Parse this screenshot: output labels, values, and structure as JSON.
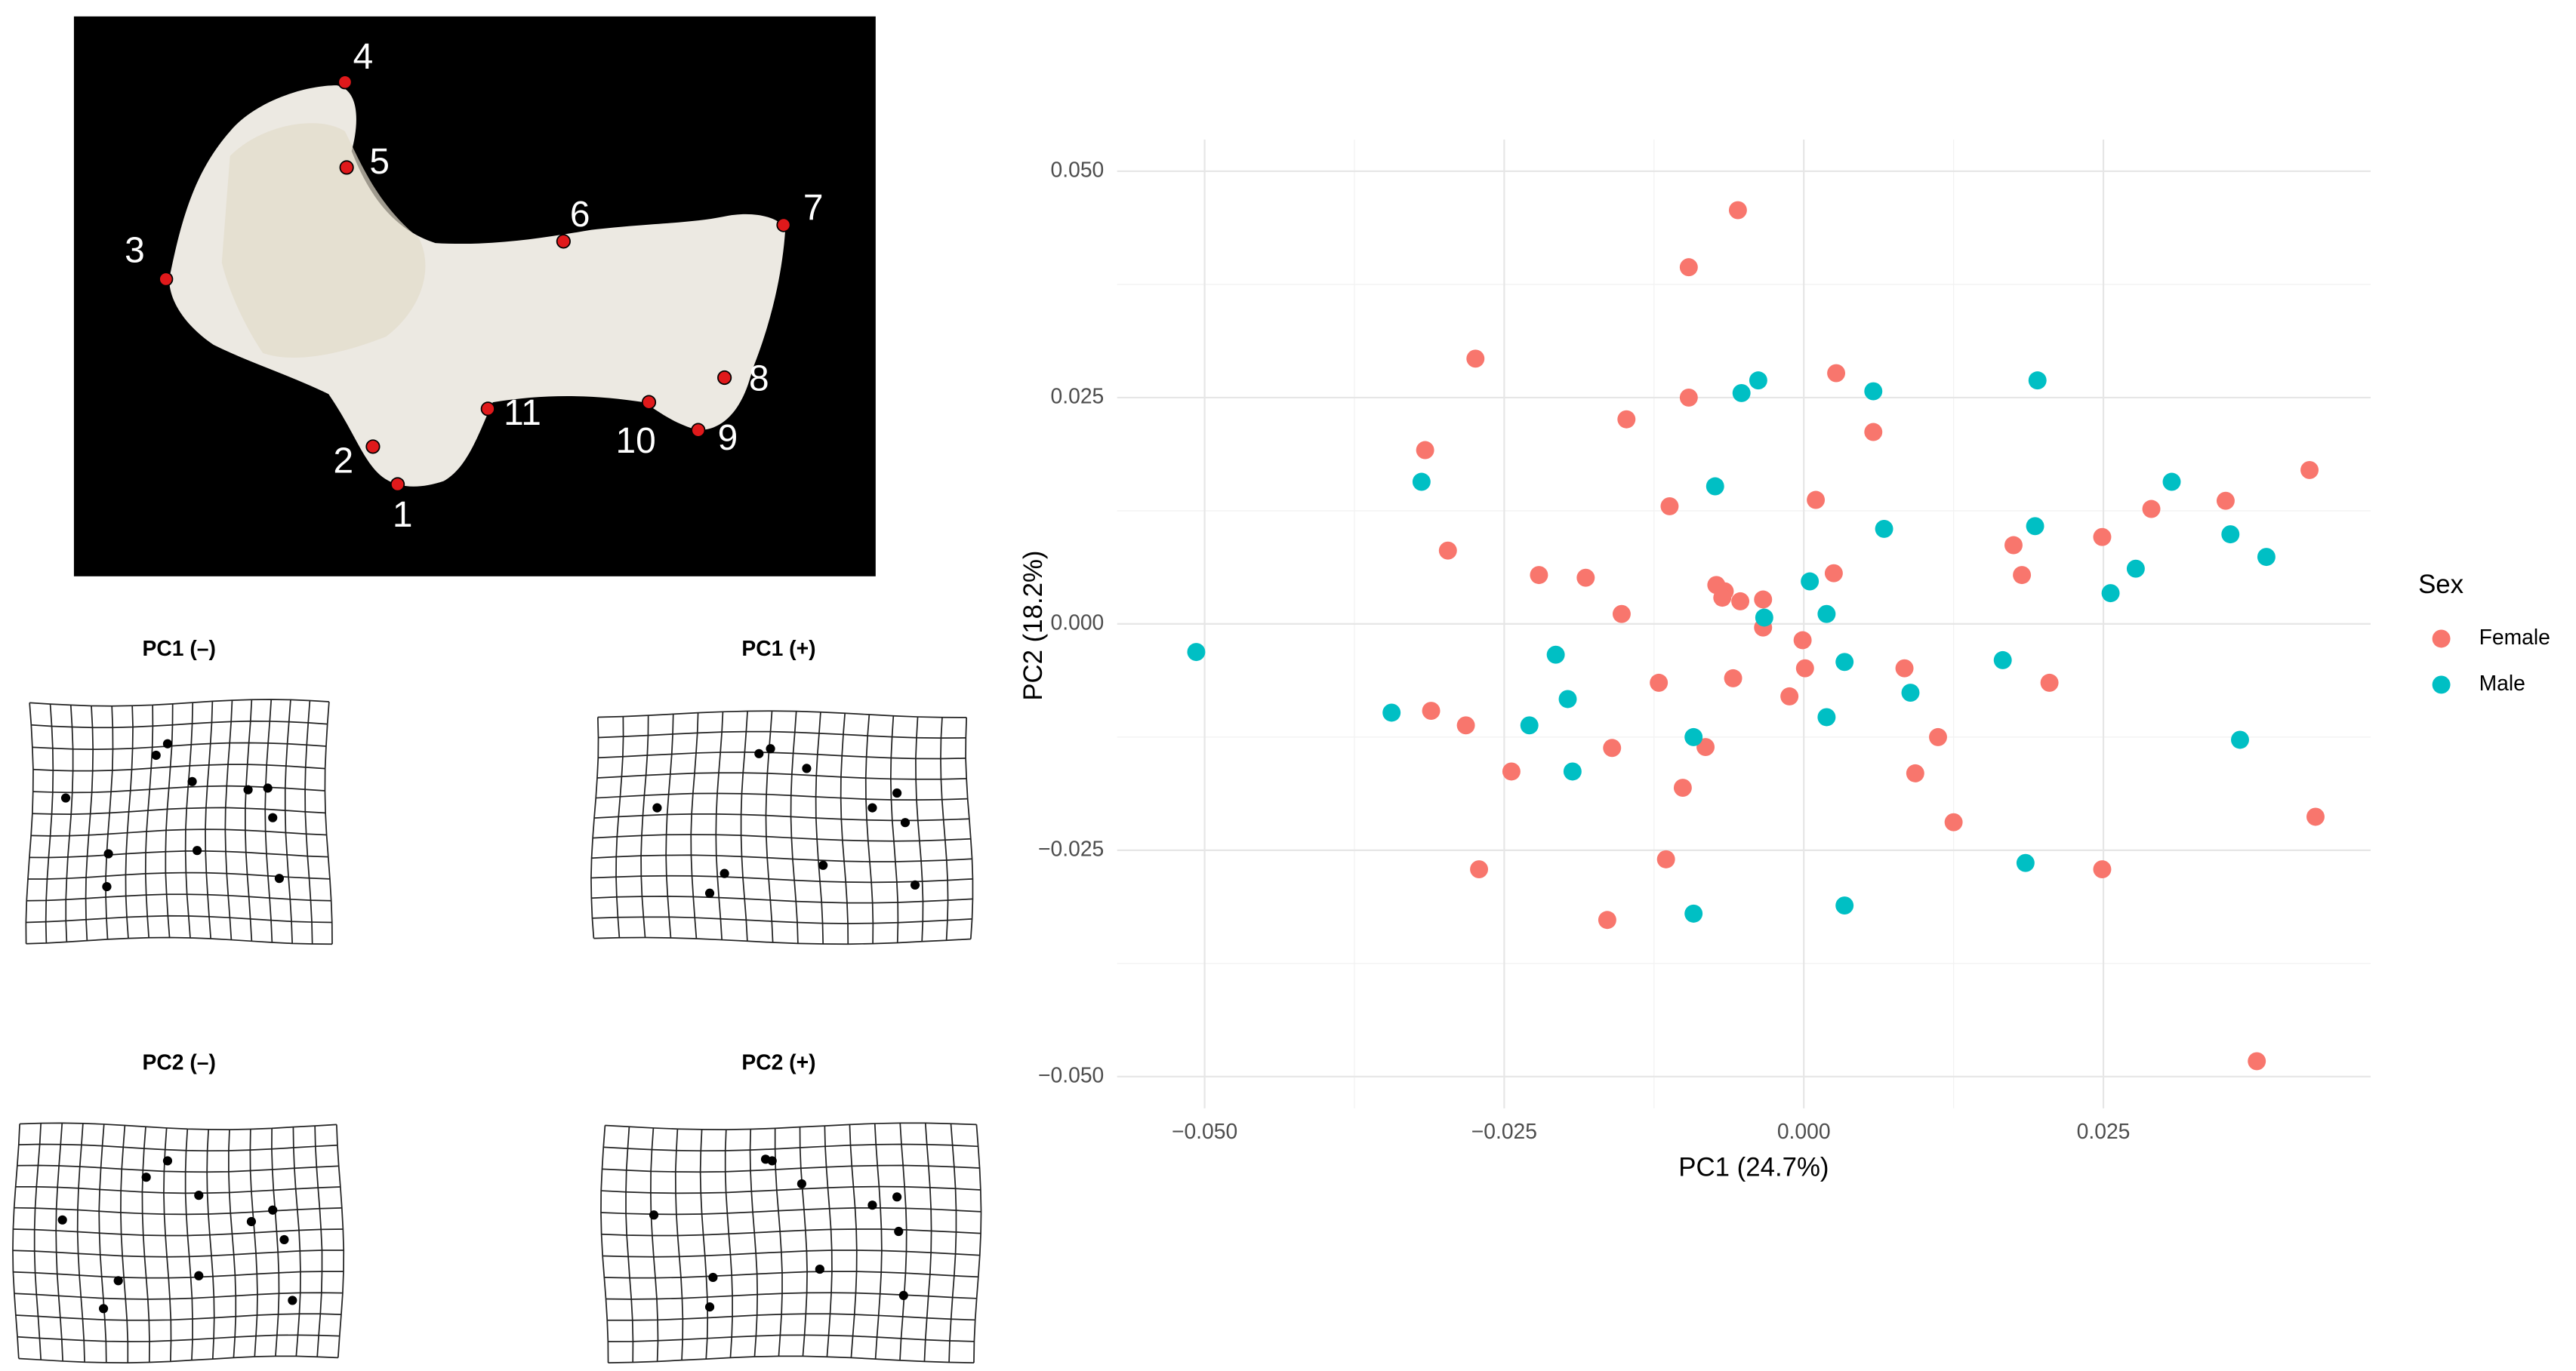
{
  "photo": {
    "landmark_labels": [
      "1",
      "2",
      "3",
      "4",
      "5",
      "6",
      "7",
      "8",
      "9",
      "10",
      "11"
    ]
  },
  "deformation_grids": [
    {
      "title": "PC1 (–)"
    },
    {
      "title": "PC1 (+)"
    },
    {
      "title": "PC2 (–)"
    },
    {
      "title": "PC2 (+)"
    }
  ],
  "chart_data": {
    "type": "scatter",
    "xlabel": "PC1 (24.7%)",
    "ylabel": "PC2 (18.2%)",
    "legend_title": "Sex",
    "legend": "right",
    "grid": true,
    "xlim": [
      -0.0573,
      0.0473
    ],
    "ylim": [
      -0.0535,
      0.0535
    ],
    "xticks": [
      {
        "value": -0.05,
        "label": "−0.050"
      },
      {
        "value": -0.025,
        "label": "−0.025"
      },
      {
        "value": 0,
        "label": "0.000"
      },
      {
        "value": 0.025,
        "label": "0.025"
      }
    ],
    "yticks": [
      {
        "value": -0.05,
        "label": "−0.050"
      },
      {
        "value": -0.025,
        "label": "−0.025"
      },
      {
        "value": 0,
        "label": "0.000"
      },
      {
        "value": 0.025,
        "label": "0.025"
      },
      {
        "value": 0.05,
        "label": "0.050"
      }
    ],
    "series": [
      {
        "name": "Female",
        "color": "#F8766D",
        "x": [
          -0.0055,
          -0.0096,
          -0.0274,
          0.0027,
          -0.0096,
          -0.0148,
          0.0058,
          -0.0316,
          0.0422,
          0.001,
          0.0352,
          -0.0112,
          0.029,
          0.0249,
          0.0175,
          -0.0297,
          0.0025,
          -0.0221,
          -0.0182,
          0.0182,
          -0.0073,
          -0.0066,
          -0.0068,
          -0.0053,
          -0.0034,
          -0.0152,
          -0.0034,
          -0.0001,
          0.0001,
          0.0084,
          -0.0059,
          -0.0121,
          0.0205,
          -0.0012,
          -0.0311,
          -0.0282,
          0.0112,
          -0.016,
          -0.0082,
          -0.0244,
          0.0093,
          -0.0101,
          0.0427,
          0.0125,
          -0.0115,
          -0.0271,
          0.0249,
          -0.0164,
          0.0378
        ],
        "y": [
          0.0457,
          0.0394,
          0.0293,
          0.0277,
          0.025,
          0.0226,
          0.0212,
          0.0192,
          0.017,
          0.0137,
          0.0136,
          0.013,
          0.0127,
          0.0096,
          0.0087,
          0.0081,
          0.0056,
          0.0054,
          0.0051,
          0.0054,
          0.0043,
          0.0036,
          0.0029,
          0.0025,
          0.0027,
          0.0011,
          -0.0004,
          -0.0018,
          -0.0049,
          -0.0049,
          -0.006,
          -0.0065,
          -0.0065,
          -0.008,
          -0.0096,
          -0.0112,
          -0.0125,
          -0.0137,
          -0.0136,
          -0.0163,
          -0.0165,
          -0.0181,
          -0.0213,
          -0.0219,
          -0.026,
          -0.0271,
          -0.0271,
          -0.0327,
          -0.0483
        ]
      },
      {
        "name": "Male",
        "color": "#00BFC4",
        "x": [
          -0.0507,
          -0.0038,
          -0.0052,
          0.0058,
          0.0195,
          -0.0319,
          -0.0074,
          0.0307,
          0.0067,
          0.0193,
          0.0356,
          0.0386,
          0.0277,
          0.0005,
          0.0256,
          -0.0033,
          0.0019,
          -0.0207,
          0.0034,
          0.0166,
          -0.0197,
          0.0089,
          -0.0344,
          0.0019,
          -0.0229,
          -0.0092,
          0.0364,
          -0.0193,
          0.0185,
          0.0034,
          -0.0092
        ],
        "y": [
          -0.0031,
          0.0269,
          0.0255,
          0.0257,
          0.0269,
          0.0157,
          0.0152,
          0.0157,
          0.0105,
          0.0108,
          0.0099,
          0.0074,
          0.0061,
          0.0047,
          0.0034,
          0.0007,
          0.0011,
          -0.0034,
          -0.0042,
          -0.004,
          -0.0083,
          -0.0076,
          -0.0098,
          -0.0103,
          -0.0112,
          -0.0125,
          -0.0128,
          -0.0163,
          -0.0264,
          -0.0311,
          -0.032
        ]
      }
    ]
  }
}
